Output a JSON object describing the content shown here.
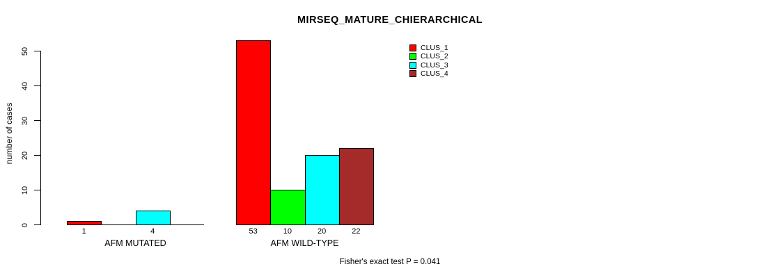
{
  "chart_data": {
    "type": "bar",
    "title": "MIRSEQ_MATURE_CHIERARCHICAL",
    "ylabel": "number of cases",
    "xlabel": "",
    "ylim": [
      0,
      53
    ],
    "yticks": [
      0,
      10,
      20,
      30,
      40,
      50
    ],
    "grid": false,
    "legend_position": "top-right",
    "categories": [
      "AFM MUTATED",
      "AFM WILD-TYPE"
    ],
    "series": [
      {
        "name": "CLUS_1",
        "color": "#FF0000",
        "values": [
          1,
          53
        ]
      },
      {
        "name": "CLUS_2",
        "color": "#00FF00",
        "values": [
          0,
          10
        ]
      },
      {
        "name": "CLUS_3",
        "color": "#00FFFF",
        "values": [
          4,
          20
        ]
      },
      {
        "name": "CLUS_4",
        "color": "#A52A2A",
        "values": [
          0,
          22
        ]
      }
    ],
    "bar_value_labels_shown": true,
    "zero_value_labels_hidden": true,
    "annotation": "Fisher's exact test P = 0.041"
  }
}
